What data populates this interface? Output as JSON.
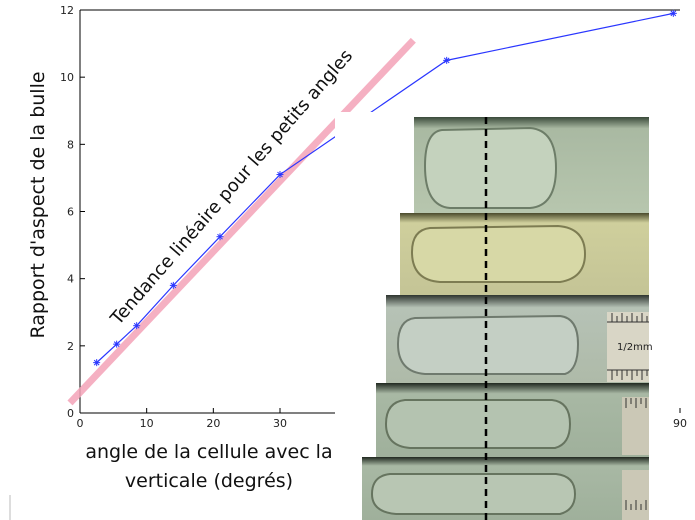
{
  "chart_data": {
    "type": "line",
    "title": "",
    "xlabel_line1": "angle de la cellule avec la",
    "xlabel_line2": "verticale (degrés)",
    "ylabel": "Rapport d'aspect de la bulle",
    "annotation": "Tendance linéaire pour les petits angles",
    "xlim": [
      0,
      90
    ],
    "ylim": [
      0,
      12
    ],
    "x_ticks": [
      0,
      10,
      20,
      30,
      90
    ],
    "y_ticks": [
      0,
      2,
      4,
      6,
      8,
      10,
      12
    ],
    "series": [
      {
        "color": "#2a36ff",
        "x": [
          2.5,
          5.5,
          8.5,
          14,
          21,
          30,
          55,
          89
        ],
        "y": [
          1.5,
          2.05,
          2.6,
          3.8,
          5.25,
          7.1,
          10.5,
          11.9
        ]
      }
    ],
    "trend_line": {
      "color": "#f4a3b8",
      "x": [
        -1.5,
        50
      ],
      "y": [
        0.3,
        11.1
      ]
    },
    "inset_label": "1/2mm",
    "colors": {
      "axes": "#000000",
      "series": "#2a36ff",
      "trend": "#f4a3b8"
    }
  }
}
